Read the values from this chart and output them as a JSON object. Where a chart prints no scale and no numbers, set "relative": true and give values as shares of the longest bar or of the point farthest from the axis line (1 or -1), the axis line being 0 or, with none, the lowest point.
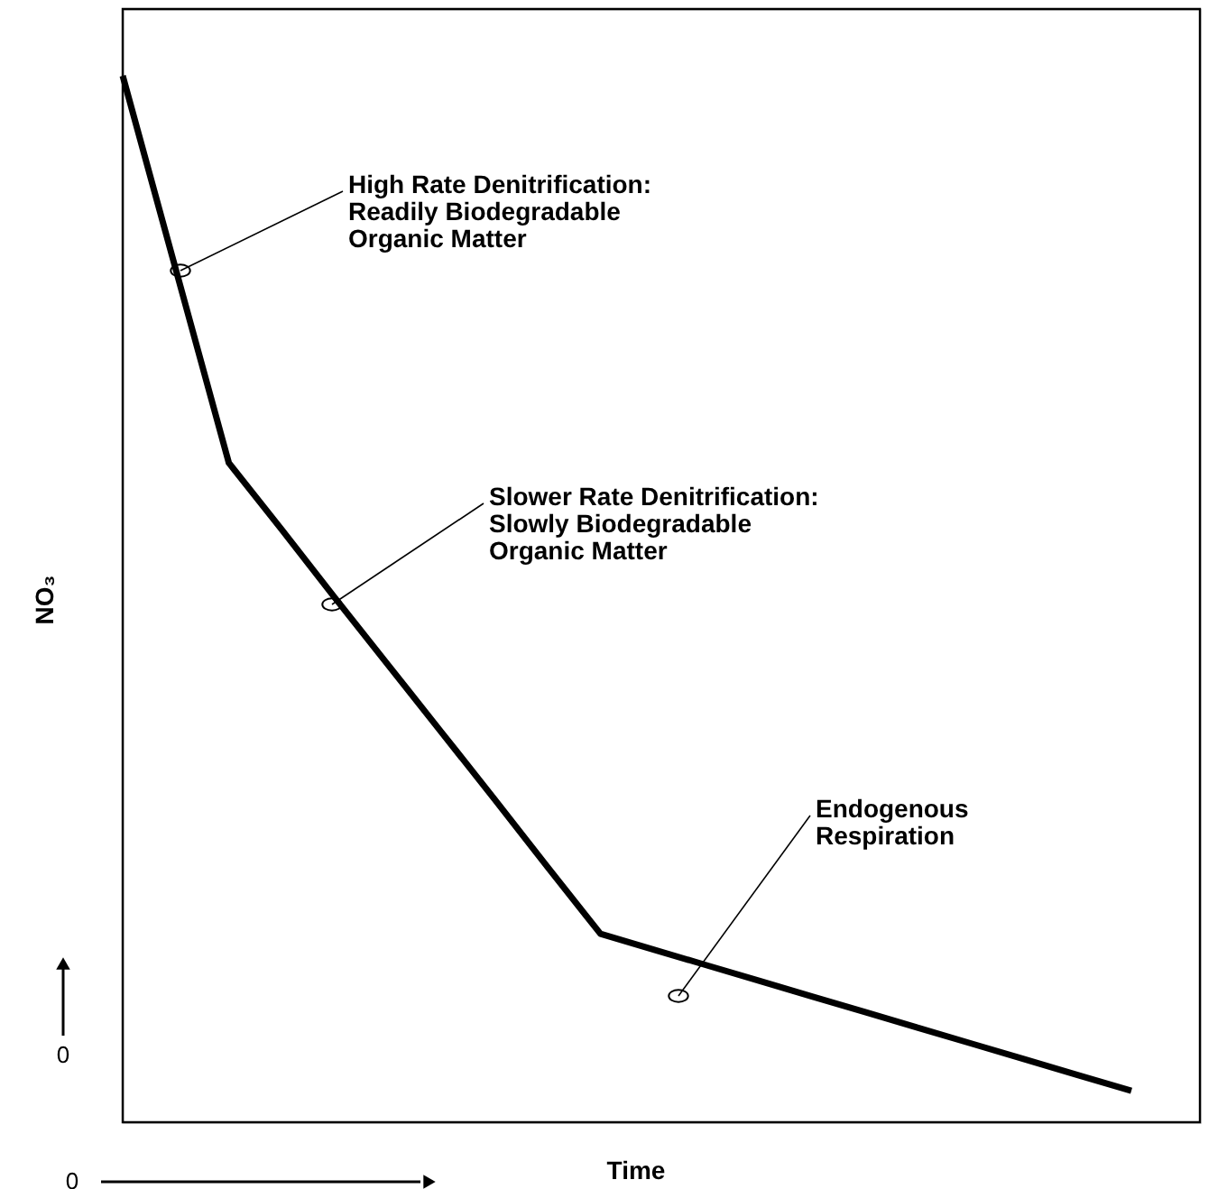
{
  "chart_data": {
    "type": "line",
    "relative": true,
    "xlabel": "Time",
    "ylabel": "NO₃",
    "categories": [
      null,
      null,
      null,
      null,
      null,
      null,
      null,
      null,
      null,
      null,
      null,
      null,
      null,
      null,
      null,
      null,
      null,
      null,
      null,
      null
    ],
    "values": [
      1,
      0.815,
      0.63,
      0.566,
      0.501,
      0.437,
      0.373,
      0.309,
      0.244,
      0.18,
      0.165,
      0.15,
      0.135,
      0.12,
      0.105,
      0.09,
      0.075,
      0.06,
      0.045,
      0.03
    ],
    "color": "#000000",
    "marker": "none",
    "line_style": "solid",
    "annotations": [
      "High Rate Denitrification:\nReadily Biodegradable\nOrganic Matter",
      "Slower Rate Denitrification:\nSlowly Biodegradable\nOrganic Matter",
      "Endogenous\nRespiration",
      "0",
      "0"
    ]
  }
}
